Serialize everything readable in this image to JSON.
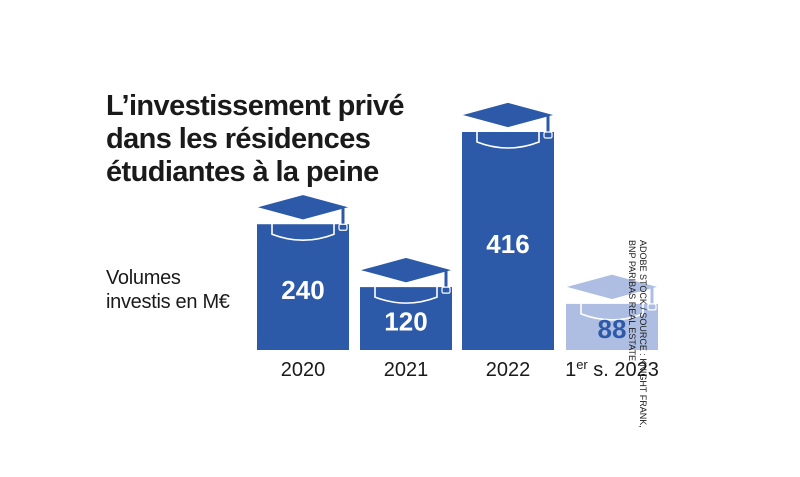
{
  "title_lines": [
    "L’investissement privé",
    "dans les résidences",
    "étudiantes à la peine"
  ],
  "ylabel_lines": [
    "Volumes",
    "investis en M€"
  ],
  "source_lines": [
    "ADOBE STOCK / SOURCE : KNIGHT FRANK,",
    "BNP PARIBAS REAL ESTATE"
  ],
  "colors": {
    "bar": "#2d5aa8",
    "bar_partial": "#aebde2",
    "label_light": "#ffffff",
    "label_partial": "#2d5aa8"
  },
  "icon": "graduation-cap-icon",
  "chart_data": {
    "type": "bar",
    "categories": [
      "2020",
      "2021",
      "2022",
      "1er s. 2023"
    ],
    "values": [
      240,
      120,
      416,
      88
    ],
    "value_labels": [
      "240",
      "120",
      "416",
      "88"
    ],
    "ylabel": "Volumes investis en M€",
    "grid": false,
    "legend": "none"
  }
}
